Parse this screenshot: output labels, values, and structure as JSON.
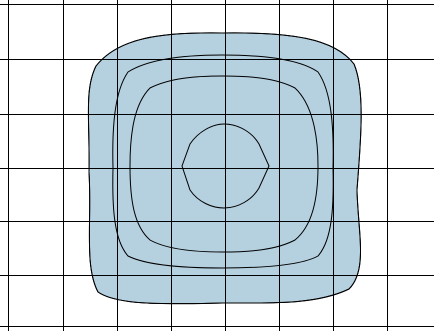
{
  "diagram": {
    "type": "contour-on-grid",
    "grid": {
      "columns": 8,
      "rows": 6,
      "line_color": "#000000"
    },
    "contour_fill_color": "#b5d0df",
    "contour_stroke_color": "#000000",
    "contour_count": 4
  }
}
